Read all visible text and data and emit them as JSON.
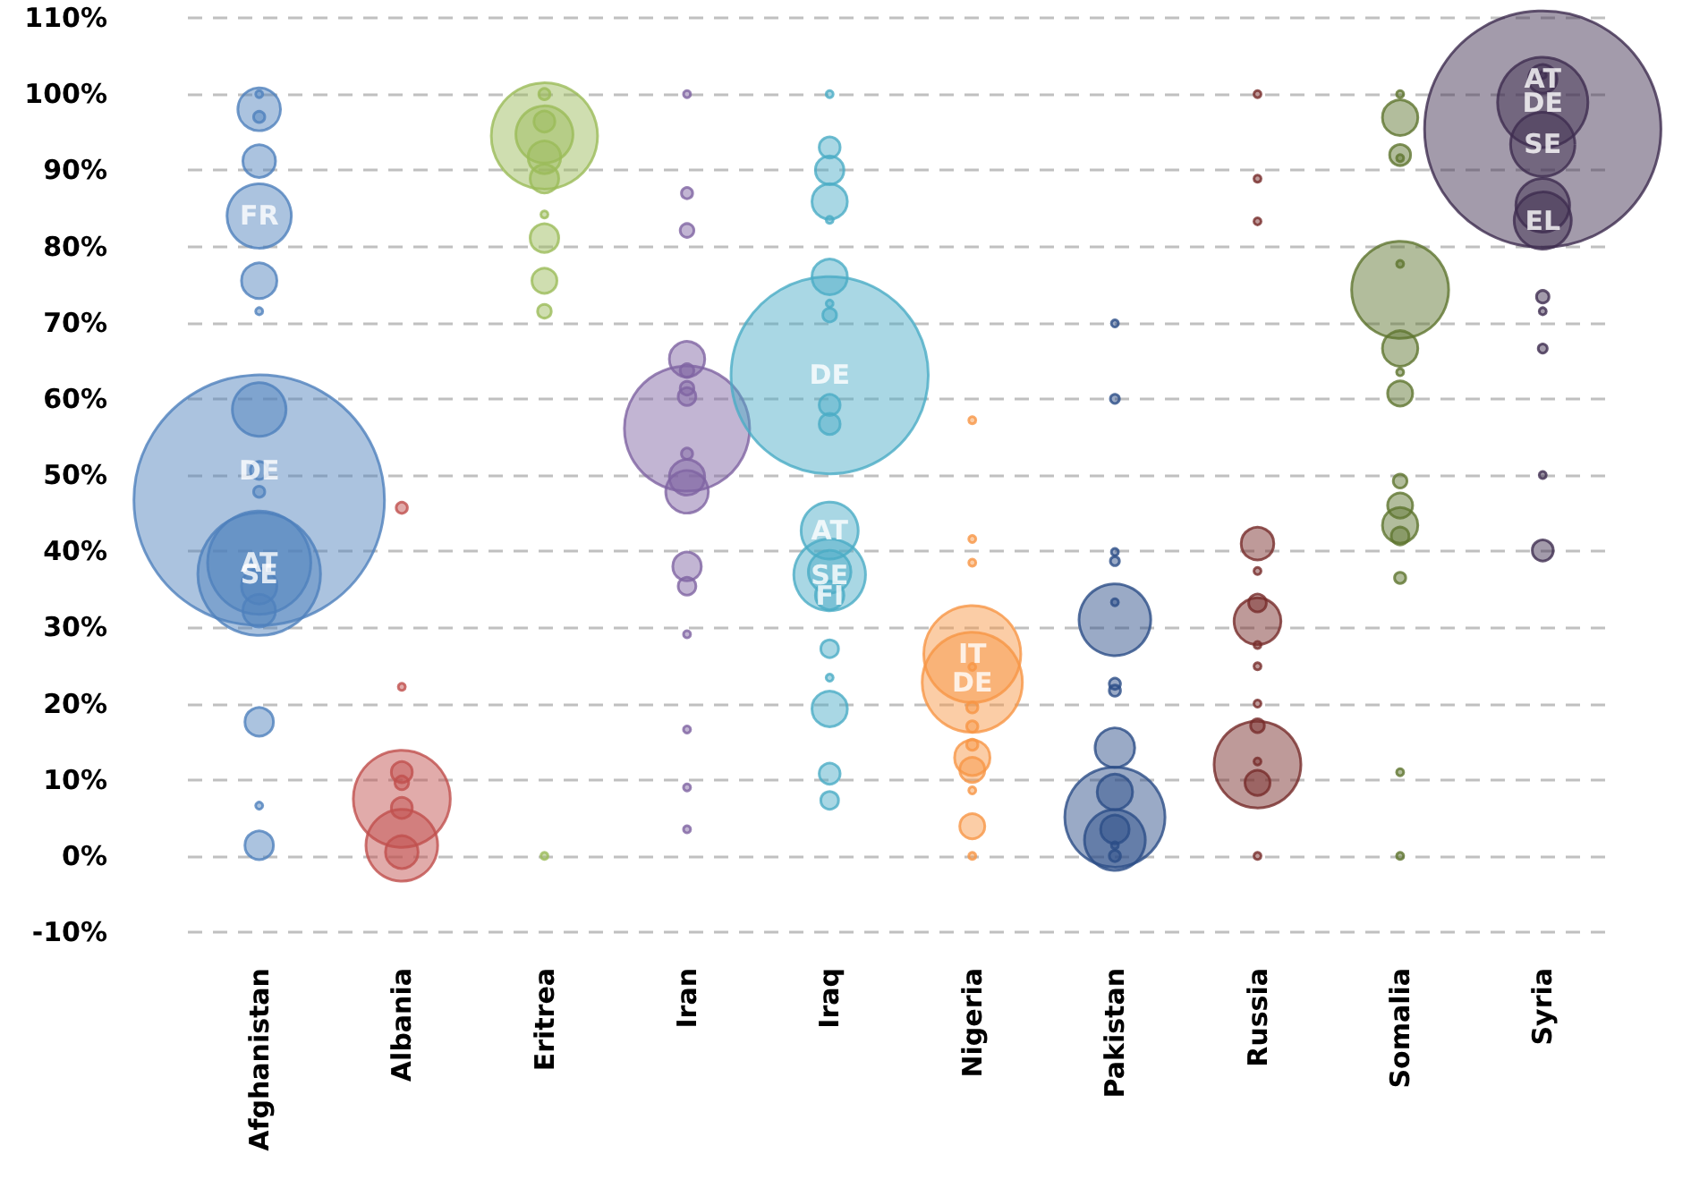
{
  "chart_data": {
    "type": "bubble",
    "categories": [
      "Afghanistan",
      "Albania",
      "Eritrea",
      "Iran",
      "Iraq",
      "Nigeria",
      "Pakistan",
      "Russia",
      "Somalia",
      "Syria"
    ],
    "ylim": [
      -10,
      110
    ],
    "yticks": [
      {
        "value": -10,
        "label": "-10%"
      },
      {
        "value": 0,
        "label": "0%"
      },
      {
        "value": 10,
        "label": "10%"
      },
      {
        "value": 20,
        "label": "20%"
      },
      {
        "value": 30,
        "label": "30%"
      },
      {
        "value": 40,
        "label": "40%"
      },
      {
        "value": 50,
        "label": "50%"
      },
      {
        "value": 60,
        "label": "60%"
      },
      {
        "value": 70,
        "label": "70%"
      },
      {
        "value": 80,
        "label": "80%"
      },
      {
        "value": 90,
        "label": "90%"
      },
      {
        "value": 100,
        "label": "100%"
      },
      {
        "value": 110,
        "label": "110%"
      }
    ],
    "grid": "y",
    "line_style": "dashed",
    "marker": "circle",
    "series": [
      {
        "color": "#4f81bd",
        "x": [
          "Afghanistan",
          "Afghanistan",
          "Afghanistan",
          "Afghanistan",
          "Afghanistan",
          "Afghanistan",
          "Afghanistan",
          "Afghanistan",
          "Afghanistan",
          "Afghanistan",
          "Afghanistan",
          "Afghanistan",
          "Afghanistan",
          "Afghanistan",
          "Afghanistan",
          "Afghanistan",
          "Afghanistan",
          "Afghanistan"
        ],
        "values": [
          46.7,
          37,
          38.5,
          58.6,
          84,
          98,
          91.2,
          75.5,
          35.4,
          32.2,
          17.6,
          1.4,
          50.6,
          47.8,
          97,
          100,
          71.5,
          6.6
        ],
        "sizes": [
          1,
          0.24,
          0.17,
          0.046,
          0.066,
          0.029,
          0.017,
          0.02,
          0.02,
          0.017,
          0.013,
          0.013,
          0.005,
          0.002,
          0.002,
          0.0008,
          0.0008,
          0.0008
        ],
        "value_labels": [
          null,
          "SE",
          "AT",
          null,
          "FR",
          null,
          null,
          null,
          null,
          null,
          null,
          null,
          "DE",
          null,
          null,
          null,
          null,
          null
        ]
      },
      {
        "color": "#c0504d",
        "x": [
          "Albania",
          "Albania",
          "Albania",
          "Albania",
          "Albania",
          "Albania",
          "Albania",
          "Albania"
        ],
        "values": [
          7.5,
          1.4,
          0.5,
          11,
          6.3,
          9.6,
          45.7,
          22.2
        ],
        "sizes": [
          0.15,
          0.082,
          0.017,
          0.007,
          0.007,
          0.003,
          0.002,
          0.0008
        ]
      },
      {
        "color": "#9bbb59",
        "x": [
          "Eritrea",
          "Eritrea",
          "Eritrea",
          "Eritrea",
          "Eritrea",
          "Eritrea",
          "Eritrea",
          "Eritrea",
          "Eritrea",
          "Eritrea",
          "Eritrea"
        ],
        "values": [
          94.5,
          94.7,
          91.7,
          88.9,
          81.1,
          75.5,
          96.4,
          71.5,
          100,
          84.2,
          0
        ],
        "sizes": [
          0.18,
          0.052,
          0.017,
          0.013,
          0.013,
          0.01,
          0.007,
          0.003,
          0.002,
          0.0008,
          0.0008
        ]
      },
      {
        "color": "#8064a2",
        "x": [
          "Iran",
          "Iran",
          "Iran",
          "Iran",
          "Iran",
          "Iran",
          "Iran",
          "Iran",
          "Iran",
          "Iran",
          "Iran",
          "Iran",
          "Iran",
          "Iran",
          "Iran",
          "Iran",
          "Iran"
        ],
        "values": [
          56.1,
          47.8,
          49.7,
          65.2,
          38,
          60.3,
          35.4,
          63.7,
          61.4,
          82.1,
          52.8,
          87,
          29.1,
          9,
          3.5,
          16.6,
          100
        ],
        "sizes": [
          0.25,
          0.029,
          0.02,
          0.02,
          0.013,
          0.005,
          0.005,
          0.003,
          0.003,
          0.003,
          0.002,
          0.002,
          0.0008,
          0.0008,
          0.0008,
          0.0008,
          0.0008
        ]
      },
      {
        "color": "#4bacc6",
        "x": [
          "Iraq",
          "Iraq",
          "Iraq",
          "Iraq",
          "Iraq",
          "Iraq",
          "Iraq",
          "Iraq",
          "Iraq",
          "Iraq",
          "Iraq",
          "Iraq",
          "Iraq",
          "Iraq",
          "Iraq",
          "Iraq",
          "Iraq",
          "Iraq",
          "Iraq",
          "Iraq"
        ],
        "values": [
          63.1,
          36.9,
          42.7,
          37.3,
          85.9,
          76,
          19.3,
          90,
          34.2,
          93,
          59.2,
          56.7,
          10.8,
          27.2,
          7.3,
          71,
          72.5,
          23.4,
          100,
          83.5
        ],
        "sizes": [
          0.62,
          0.082,
          0.052,
          0.029,
          0.02,
          0.02,
          0.02,
          0.013,
          0.013,
          0.007,
          0.007,
          0.007,
          0.007,
          0.005,
          0.005,
          0.003,
          0.0008,
          0.0008,
          0.0008,
          0.0008
        ],
        "value_labels": [
          "DE",
          "SE",
          "AT",
          null,
          null,
          null,
          null,
          null,
          "FI",
          null,
          null,
          null,
          null,
          null,
          null,
          null,
          null,
          null,
          null,
          null
        ]
      },
      {
        "color": "#f79646",
        "x": [
          "Nigeria",
          "Nigeria",
          "Nigeria",
          "Nigeria",
          "Nigeria",
          "Nigeria",
          "Nigeria",
          "Nigeria",
          "Nigeria",
          "Nigeria",
          "Nigeria",
          "Nigeria",
          "Nigeria",
          "Nigeria"
        ],
        "values": [
          22.8,
          26.5,
          12.9,
          11.3,
          3.9,
          19.5,
          17,
          14.6,
          24.8,
          8.6,
          41.6,
          38.5,
          57.2,
          0
        ],
        "sizes": [
          0.16,
          0.15,
          0.02,
          0.01,
          0.01,
          0.002,
          0.002,
          0.002,
          0.0008,
          0.0008,
          0.0008,
          0.0008,
          0.0008,
          0.0008
        ],
        "value_labels": [
          "DE",
          "IT",
          null,
          null,
          null,
          null,
          null,
          null,
          null,
          null,
          null,
          null,
          null,
          null
        ]
      },
      {
        "color": "#2c4d87",
        "x": [
          "Pakistan",
          "Pakistan",
          "Pakistan",
          "Pakistan",
          "Pakistan",
          "Pakistan",
          "Pakistan",
          "Pakistan",
          "Pakistan",
          "Pakistan",
          "Pakistan",
          "Pakistan",
          "Pakistan",
          "Pakistan",
          "Pakistan"
        ],
        "values": [
          5.1,
          31,
          2.1,
          14.2,
          8.4,
          3.5,
          22.6,
          21.7,
          0,
          60,
          38.7,
          1.4,
          69.9,
          33.3,
          39.9
        ],
        "sizes": [
          0.16,
          0.082,
          0.059,
          0.025,
          0.02,
          0.013,
          0.002,
          0.002,
          0.002,
          0.0013,
          0.0013,
          0.0008,
          0.0008,
          0.0008,
          0.0008
        ]
      },
      {
        "color": "#772c2a",
        "x": [
          "Russia",
          "Russia",
          "Russia",
          "Russia",
          "Russia",
          "Russia",
          "Russia",
          "Russia",
          "Russia",
          "Russia",
          "Russia",
          "Russia",
          "Russia",
          "Russia",
          "Russia"
        ],
        "values": [
          12,
          30.8,
          41,
          9.6,
          33.2,
          17.1,
          37.4,
          27.7,
          12.4,
          0,
          88.9,
          83.3,
          24.9,
          20,
          100
        ],
        "sizes": [
          0.12,
          0.035,
          0.017,
          0.01,
          0.005,
          0.003,
          0.0008,
          0.0008,
          0.0008,
          0.0008,
          0.0008,
          0.0008,
          0.0008,
          0.0008,
          0.0008
        ]
      },
      {
        "color": "#5f7530",
        "x": [
          "Somalia",
          "Somalia",
          "Somalia",
          "Somalia",
          "Somalia",
          "Somalia",
          "Somalia",
          "Somalia",
          "Somalia",
          "Somalia",
          "Somalia",
          "Somalia",
          "Somalia",
          "Somalia",
          "Somalia",
          "Somalia"
        ],
        "values": [
          74.3,
          96.9,
          66.6,
          43.4,
          92,
          60.7,
          46,
          42,
          49.2,
          36.5,
          77.7,
          91.6,
          11,
          63.5,
          100,
          0
        ],
        "sizes": [
          0.15,
          0.02,
          0.02,
          0.02,
          0.007,
          0.01,
          0.01,
          0.005,
          0.003,
          0.002,
          0.0008,
          0.0008,
          0.0008,
          0.0008,
          0.0008,
          0.0008
        ]
      },
      {
        "color": "#3f2d50",
        "x": [
          "Syria",
          "Syria",
          "Syria",
          "Syria",
          "Syria",
          "Syria",
          "Syria",
          "Syria",
          "Syria",
          "Syria",
          "Syria",
          "Syria"
        ],
        "values": [
          95.4,
          98.9,
          93.4,
          83.4,
          85.4,
          102,
          40.1,
          73.4,
          66.6,
          71.5,
          50,
          102.5
        ],
        "sizes": [
          0.89,
          0.13,
          0.066,
          0.052,
          0.046,
          0.013,
          0.007,
          0.0025,
          0.0013,
          0.0008,
          0.0008,
          0.0008
        ],
        "value_labels": [
          null,
          "DE",
          "SE",
          "EL",
          null,
          "AT",
          null,
          null,
          null,
          null,
          null,
          null
        ]
      }
    ]
  }
}
